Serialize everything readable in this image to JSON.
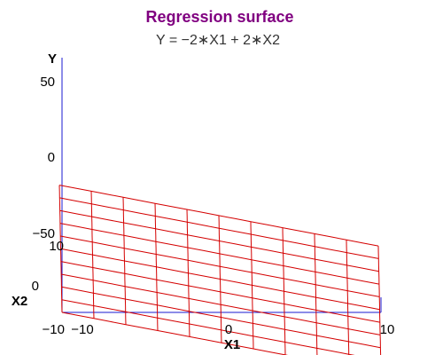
{
  "chart_data": {
    "type": "surface",
    "title": "Regression surface",
    "subtitle": "Y = −2∗X1 + 2∗X2",
    "equation": {
      "intercept": 0,
      "coef_x1": -2,
      "coef_x2": 2
    },
    "x1": {
      "label": "X1",
      "range": [
        -10,
        10
      ],
      "ticks": [
        -10,
        0,
        10
      ],
      "tick_labels": [
        "−10",
        "0",
        "10"
      ]
    },
    "x2": {
      "label": "X2",
      "range": [
        -10,
        10
      ],
      "ticks": [
        -10,
        0,
        10
      ],
      "tick_labels": [
        "−10",
        "0",
        "10"
      ]
    },
    "y": {
      "label": "Y",
      "range": [
        -50,
        50
      ],
      "ticks": [
        -50,
        0,
        50
      ],
      "tick_labels": [
        "−50",
        "0",
        "50"
      ]
    },
    "grid": {
      "x1_lines": 11,
      "x2_lines": 11
    },
    "surface_color": "#d40000",
    "axis_color": "#1a1ad0",
    "title_color": "#800080"
  }
}
